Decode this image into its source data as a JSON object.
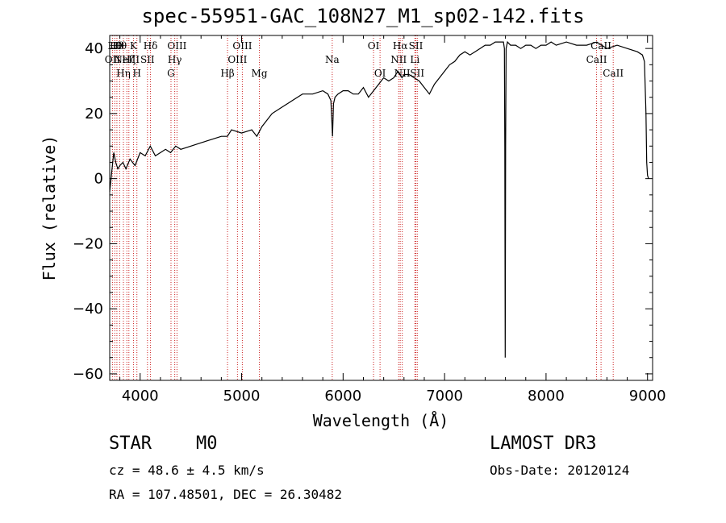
{
  "chart_data": {
    "type": "line",
    "title": "spec-55951-GAC_108N27_M1_sp02-142.fits",
    "xlabel": "Wavelength (Å)",
    "ylabel": "Flux (relative)",
    "xlim": [
      3700,
      9050
    ],
    "ylim": [
      -62,
      44
    ],
    "x_ticks": [
      4000,
      5000,
      6000,
      7000,
      8000,
      9000
    ],
    "y_ticks": [
      -60,
      -40,
      -20,
      0,
      20,
      40
    ],
    "series": [
      {
        "name": "spectrum",
        "x": [
          3700,
          3720,
          3740,
          3760,
          3780,
          3800,
          3830,
          3860,
          3900,
          3950,
          4000,
          4050,
          4100,
          4150,
          4200,
          4250,
          4300,
          4350,
          4400,
          4500,
          4600,
          4700,
          4800,
          4860,
          4900,
          5000,
          5100,
          5150,
          5200,
          5250,
          5300,
          5400,
          5500,
          5600,
          5700,
          5800,
          5850,
          5880,
          5890,
          5896,
          5905,
          5920,
          5950,
          6000,
          6050,
          6100,
          6150,
          6200,
          6250,
          6300,
          6350,
          6400,
          6450,
          6500,
          6540,
          6563,
          6580,
          6600,
          6650,
          6700,
          6750,
          6800,
          6850,
          6900,
          6950,
          7000,
          7050,
          7100,
          7150,
          7200,
          7250,
          7300,
          7350,
          7400,
          7450,
          7500,
          7550,
          7580,
          7590,
          7594,
          7598,
          7602,
          7606,
          7620,
          7650,
          7700,
          7750,
          7800,
          7850,
          7900,
          7950,
          8000,
          8050,
          8100,
          8200,
          8300,
          8400,
          8500,
          8600,
          8700,
          8800,
          8900,
          8950,
          8970,
          8985,
          8992,
          9000,
          9010
        ],
        "y": [
          -4,
          2,
          8,
          5,
          3,
          4,
          5,
          3,
          6,
          4,
          8,
          7,
          10,
          7,
          8,
          9,
          8,
          10,
          9,
          10,
          11,
          12,
          13,
          13,
          15,
          14,
          15,
          13,
          16,
          18,
          20,
          22,
          24,
          26,
          26,
          27,
          26,
          24,
          17,
          13,
          23,
          25,
          26,
          27,
          27,
          26,
          26,
          28,
          25,
          27,
          29,
          31,
          30,
          31,
          33,
          32,
          31,
          32,
          32,
          31,
          30,
          28,
          26,
          29,
          31,
          33,
          35,
          36,
          38,
          39,
          38,
          39,
          40,
          41,
          41,
          42,
          42,
          42,
          40,
          10,
          -55,
          10,
          40,
          42,
          41,
          41,
          40,
          41,
          41,
          40,
          41,
          41,
          42,
          41,
          42,
          41,
          41,
          42,
          40,
          41,
          40,
          39,
          38,
          36,
          20,
          5,
          1,
          0
        ]
      }
    ],
    "lines": [
      {
        "wl": 3727,
        "label": "OII",
        "row": 2
      },
      {
        "wl": 3750,
        "label": "Hθ",
        "row": 1
      },
      {
        "wl": 3771,
        "label": "Hθ",
        "row": 1
      },
      {
        "wl": 3798,
        "label": "Hθ",
        "row": 1
      },
      {
        "wl": 3835,
        "label": "Hη",
        "row": 3
      },
      {
        "wl": 3869,
        "label": "NeIII",
        "row": 2
      },
      {
        "wl": 3889,
        "label": "Hζ",
        "row": 2
      },
      {
        "wl": 3934,
        "label": "K",
        "row": 1
      },
      {
        "wl": 3968,
        "label": "H",
        "row": 3
      },
      {
        "wl": 4072,
        "label": "SII",
        "row": 2
      },
      {
        "wl": 4102,
        "label": "Hδ",
        "row": 1
      },
      {
        "wl": 4304,
        "label": "G",
        "row": 3
      },
      {
        "wl": 4341,
        "label": "Hγ",
        "row": 2
      },
      {
        "wl": 4363,
        "label": "OIII",
        "row": 1
      },
      {
        "wl": 4861,
        "label": "Hβ",
        "row": 3
      },
      {
        "wl": 4959,
        "label": "OIII",
        "row": 2
      },
      {
        "wl": 5007,
        "label": "OIII",
        "row": 1
      },
      {
        "wl": 5175,
        "label": "Mg",
        "row": 3
      },
      {
        "wl": 5893,
        "label": "Na",
        "row": 2
      },
      {
        "wl": 6300,
        "label": "OI",
        "row": 1
      },
      {
        "wl": 6364,
        "label": "OI",
        "row": 3
      },
      {
        "wl": 6548,
        "label": "NII",
        "row": 2
      },
      {
        "wl": 6563,
        "label": "Hα",
        "row": 1
      },
      {
        "wl": 6583,
        "label": "NII",
        "row": 3
      },
      {
        "wl": 6707,
        "label": "Li",
        "row": 2
      },
      {
        "wl": 6717,
        "label": "SII",
        "row": 1
      },
      {
        "wl": 6731,
        "label": "SII",
        "row": 3
      },
      {
        "wl": 8498,
        "label": "CaII",
        "row": 2
      },
      {
        "wl": 8542,
        "label": "CaII",
        "row": 1
      },
      {
        "wl": 8662,
        "label": "CaII",
        "row": 3
      }
    ]
  },
  "info": {
    "class": "STAR",
    "subclass": "M0",
    "survey": "LAMOST DR3",
    "cz": "cz = 48.6 ± 4.5 km/s",
    "obs_date": "Obs-Date: 20120124",
    "radec": "RA = 107.48501, DEC =  26.30482"
  },
  "colors": {
    "line": "#000000",
    "marker": "#cc2222",
    "axis": "#000000"
  }
}
